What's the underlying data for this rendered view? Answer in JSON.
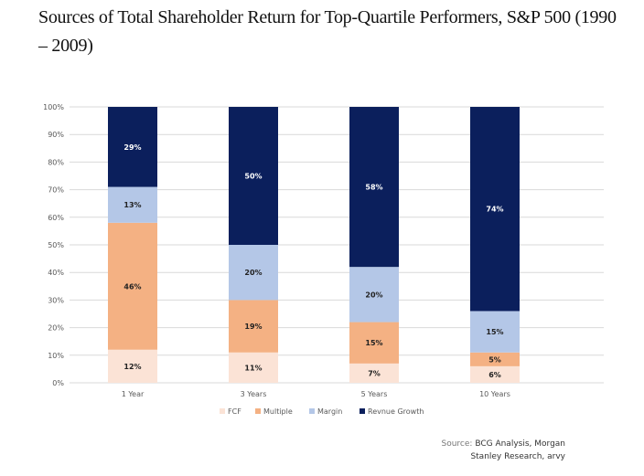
{
  "chart_data": {
    "type": "bar",
    "stacked": true,
    "title": "Sources of Total Shareholder Return for Top-Quartile Performers, S&P 500 (1990 – 2009)",
    "categories": [
      "1 Year",
      "3 Years",
      "5 Years",
      "10 Years"
    ],
    "series": [
      {
        "name": "FCF",
        "color": "#fbe3d6",
        "values": [
          12,
          11,
          7,
          6
        ]
      },
      {
        "name": "Multiple",
        "color": "#f4b183",
        "values": [
          46,
          19,
          15,
          5
        ]
      },
      {
        "name": "Margin",
        "color": "#b4c7e7",
        "values": [
          13,
          20,
          20,
          15
        ]
      },
      {
        "name": "Revnue Growth",
        "color": "#0b1f5c",
        "values": [
          29,
          50,
          58,
          74
        ]
      }
    ],
    "data_labels": [
      [
        "12%",
        "11%",
        "7%",
        "6%"
      ],
      [
        "46%",
        "19%",
        "15%",
        "5%"
      ],
      [
        "13%",
        "20%",
        "20%",
        "15%"
      ],
      [
        "29%",
        "50%",
        "58%",
        "74%"
      ]
    ],
    "ylim": [
      0,
      100
    ],
    "yticks": [
      "0%",
      "10%",
      "20%",
      "30%",
      "40%",
      "50%",
      "60%",
      "70%",
      "80%",
      "90%",
      "100%"
    ],
    "xlabel": "",
    "ylabel": "",
    "grid": true,
    "legend_position": "bottom"
  },
  "source": {
    "label": "Source:",
    "line1": "BCG Analysis, Morgan",
    "line2": "Stanley Research, arvy"
  }
}
